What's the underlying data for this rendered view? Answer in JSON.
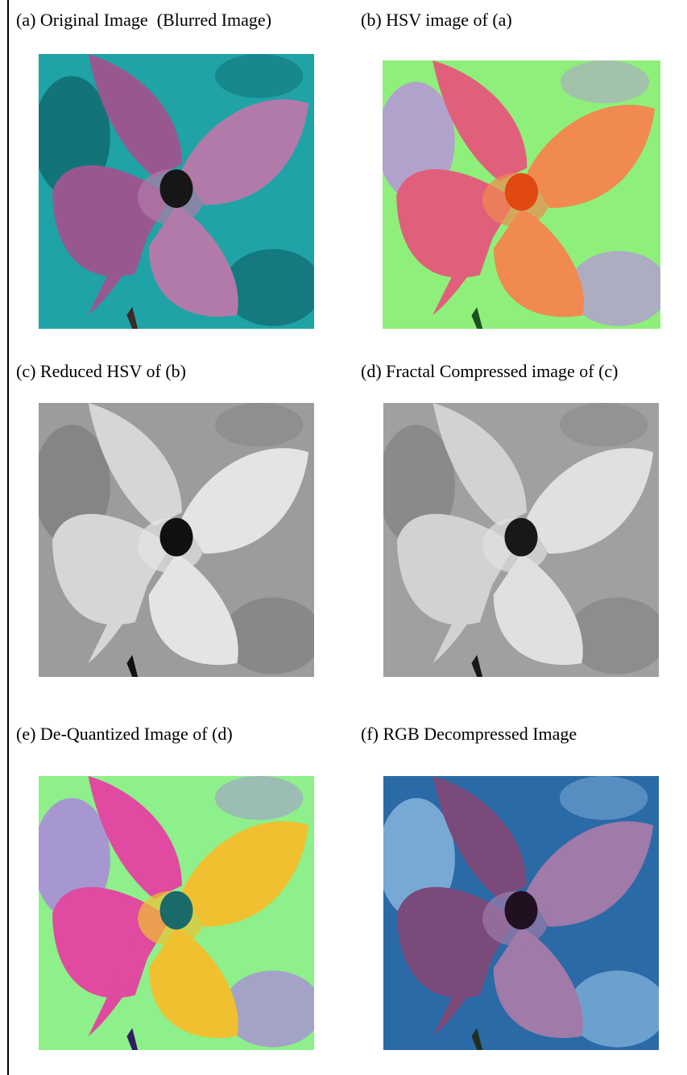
{
  "panels": [
    {
      "label": "(a) Original Image  (Blurred Image)"
    },
    {
      "label": "(b) HSV image of (a)"
    },
    {
      "label": "(c) Reduced HSV of (b)"
    },
    {
      "label": "(d) Fractal Compressed image of (c)"
    },
    {
      "label": "(e) De-Quantized Image of (d)"
    },
    {
      "label": "(f) RGB Decompressed Image"
    }
  ]
}
